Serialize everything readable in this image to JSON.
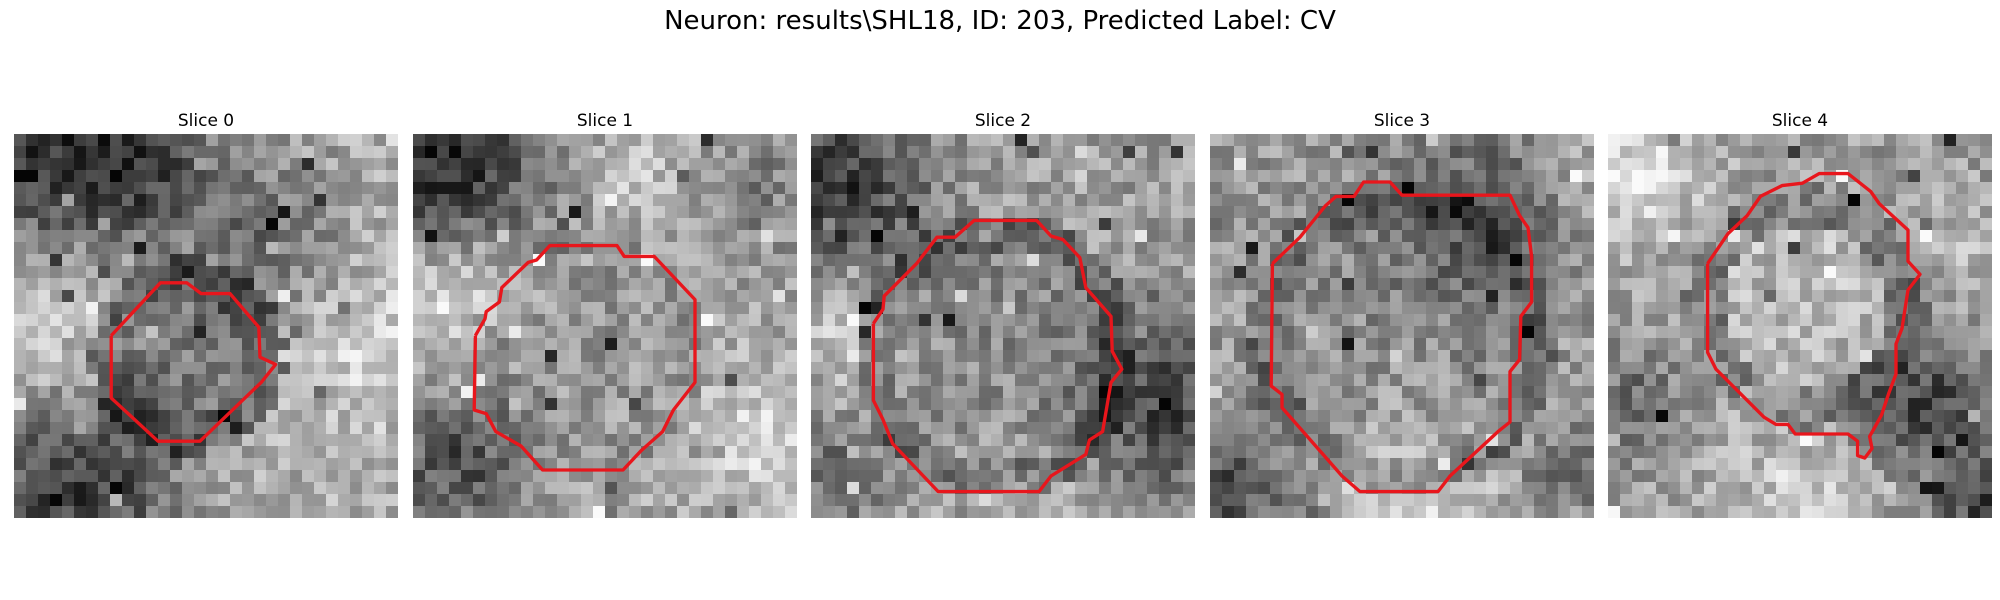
{
  "figure": {
    "title": "Neuron: results\\SHL18, ID: 203, Predicted Label: CV"
  },
  "panels": [
    {
      "title": "Slice 0"
    },
    {
      "title": "Slice 1"
    },
    {
      "title": "Slice 2"
    },
    {
      "title": "Slice 3"
    },
    {
      "title": "Slice 4"
    }
  ],
  "colors": {
    "contour": "#e8161c",
    "background": "#ffffff",
    "colormap": "grayscale"
  }
}
